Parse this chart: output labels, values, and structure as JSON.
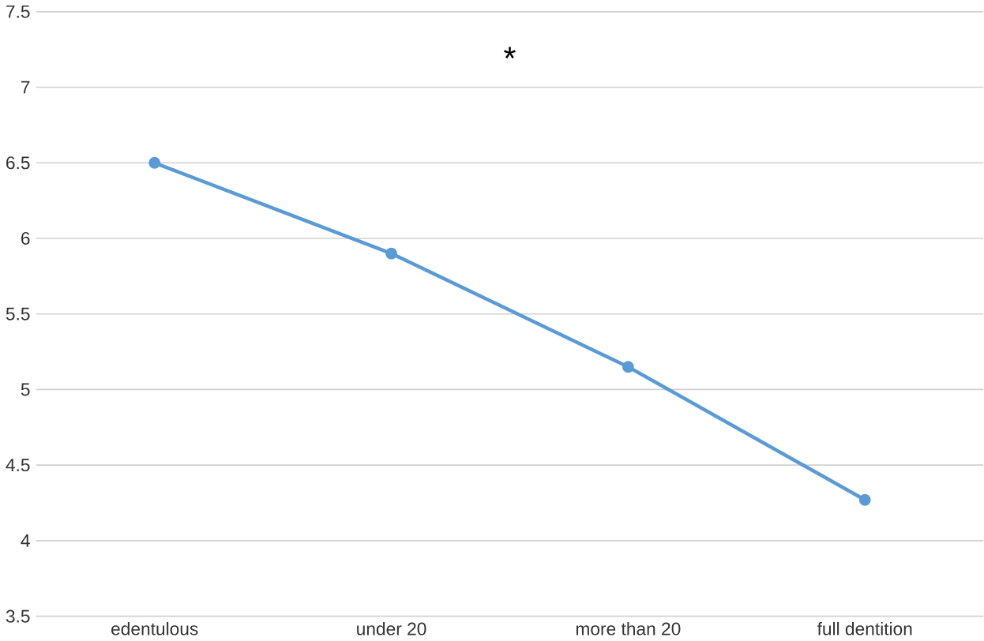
{
  "chart_data": {
    "type": "line",
    "categories": [
      "edentulous",
      "under 20",
      "more than 20",
      "full dentition"
    ],
    "series": [
      {
        "color": "#5b9bd5",
        "values": [
          6.5,
          5.9,
          5.15,
          4.27
        ]
      }
    ],
    "ylim": [
      3.5,
      7.5
    ],
    "yticks": [
      3.5,
      4,
      4.5,
      5,
      5.5,
      6,
      6.5,
      7,
      7.5
    ],
    "grid": "y",
    "marker": "circle",
    "line_style": "solid",
    "annotations": [
      "*"
    ]
  }
}
